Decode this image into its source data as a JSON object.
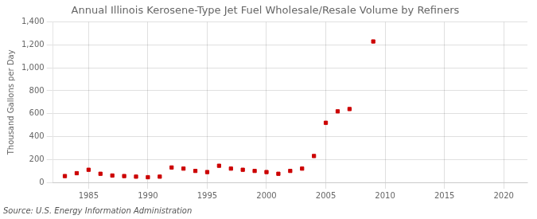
{
  "chart_data": {
    "type": "scatter",
    "title": "Annual Illinois Kerosene-Type Jet Fuel Wholesale/Resale Volume by Refiners",
    "ylabel": "Thousand Gallons per Day",
    "annotations": [
      "Source: U.S. Energy Information Administration"
    ],
    "x": [
      1983,
      1984,
      1985,
      1986,
      1987,
      1988,
      1989,
      1990,
      1991,
      1992,
      1993,
      1994,
      1995,
      1996,
      1997,
      1998,
      1999,
      2000,
      2001,
      2002,
      2003,
      2004,
      2005,
      2006,
      2007,
      2009
    ],
    "values": [
      55,
      80,
      110,
      75,
      60,
      55,
      50,
      45,
      50,
      130,
      120,
      100,
      90,
      145,
      120,
      110,
      100,
      90,
      75,
      100,
      120,
      230,
      520,
      620,
      640,
      1230
    ],
    "color": "#cc0000",
    "marker": "square",
    "xlim": [
      1982,
      2022
    ],
    "xticks": [
      1985,
      1990,
      1995,
      2000,
      2005,
      2010,
      2015,
      2020
    ],
    "ylim": [
      0,
      1400
    ],
    "yticks": [
      0,
      200,
      400,
      600,
      800,
      {
        "value": 1000,
        "label": "1,000"
      },
      {
        "value": 1200,
        "label": "1,200"
      },
      {
        "value": 1400,
        "label": "1,400"
      }
    ],
    "grid": true
  }
}
